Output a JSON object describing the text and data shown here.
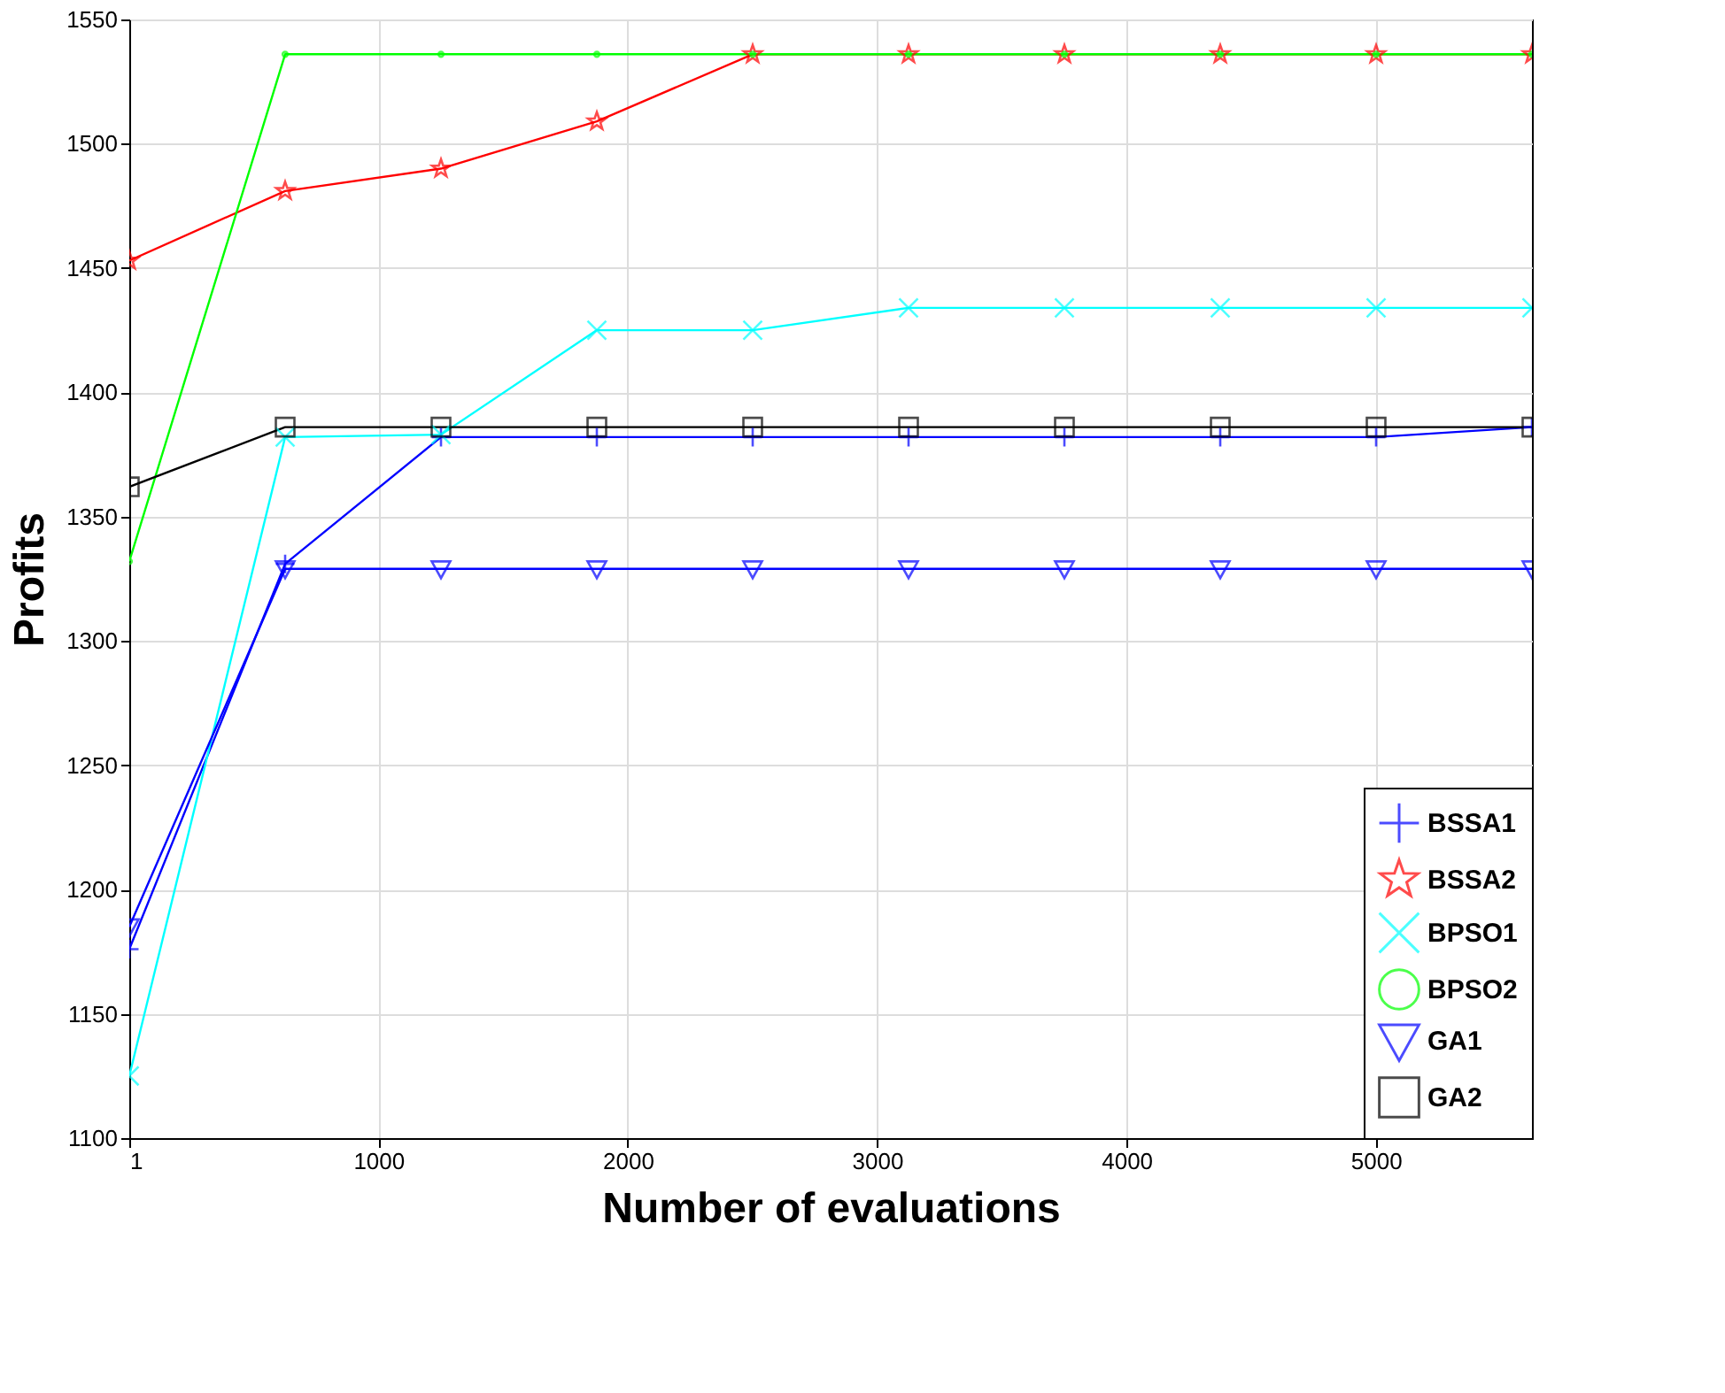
{
  "chart_data": {
    "type": "line",
    "xlabel": "Number of evaluations",
    "ylabel": "Profits",
    "x": [
      1,
      626,
      1251,
      1876,
      2501,
      3126,
      3751,
      4376,
      5001,
      5626
    ],
    "xlim": [
      1,
      5626
    ],
    "xticks": [
      1,
      1000,
      2000,
      3000,
      4000,
      5000
    ],
    "ylim": [
      1100,
      1550
    ],
    "yticks": [
      1100,
      1150,
      1200,
      1250,
      1300,
      1350,
      1400,
      1450,
      1500,
      1550
    ],
    "grid": true,
    "legend": "bottom right",
    "series": [
      {
        "name": "BSSA1",
        "color": "#0000ff",
        "marker": "cross",
        "values": [
          1176,
          1331,
          1382,
          1382,
          1382,
          1382,
          1382,
          1382,
          1382,
          1386
        ]
      },
      {
        "name": "BSSA2",
        "color": "#ff0000",
        "marker": "star",
        "values": [
          1453,
          1481,
          1490,
          1509,
          1536,
          1536,
          1536,
          1536,
          1536,
          1536
        ]
      },
      {
        "name": "BPSO1",
        "color": "#00ffff",
        "marker": "x",
        "values": [
          1125,
          1382,
          1383,
          1425,
          1425,
          1434,
          1434,
          1434,
          1434,
          1434
        ]
      },
      {
        "name": "BPSO2",
        "color": "#00ff00",
        "marker": "circle",
        "values": [
          1332,
          1536,
          1536,
          1536,
          1536,
          1536,
          1536,
          1536,
          1536,
          1536
        ]
      },
      {
        "name": "GA1",
        "color": "#0000ff",
        "marker": "triangle",
        "values": [
          1185,
          1329,
          1329,
          1329,
          1329,
          1329,
          1329,
          1329,
          1329,
          1329
        ]
      },
      {
        "name": "GA2",
        "color": "#000000",
        "marker": "square",
        "values": [
          1362,
          1386,
          1386,
          1386,
          1386,
          1386,
          1386,
          1386,
          1386,
          1386
        ]
      }
    ]
  }
}
